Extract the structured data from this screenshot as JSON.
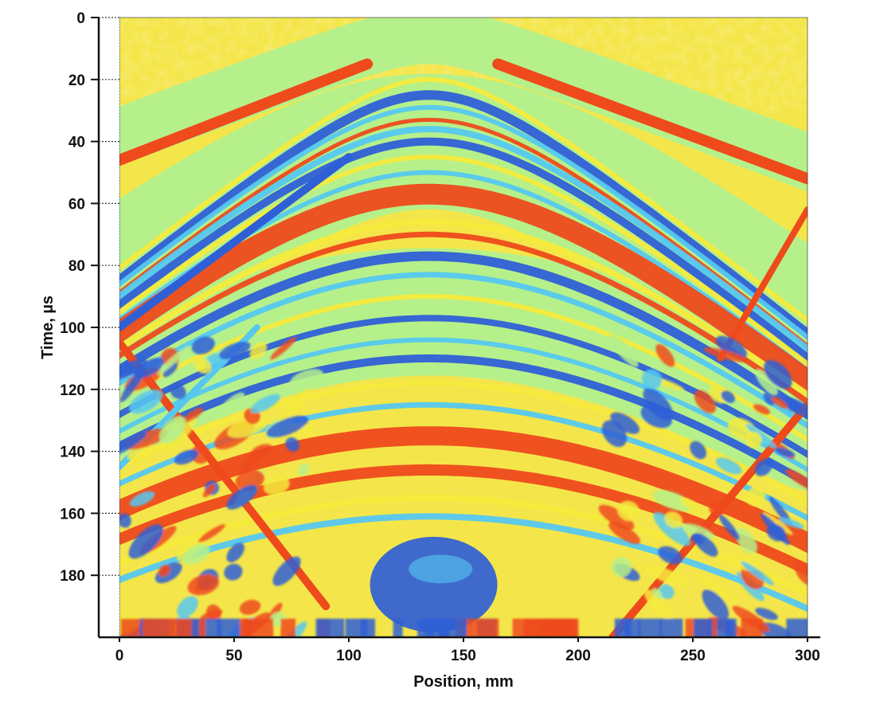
{
  "chart_data": {
    "type": "heatmap",
    "title": "",
    "xlabel": "Position, mm",
    "ylabel": "Time, µs",
    "xlim": [
      0,
      300
    ],
    "ylim": [
      0,
      200
    ],
    "y_inverted": true,
    "x_ticks": [
      0,
      50,
      100,
      150,
      200,
      250,
      300
    ],
    "x_tick_labels": [
      "0",
      "50",
      "100",
      "150",
      "200",
      "250",
      "300"
    ],
    "y_ticks": [
      0,
      20,
      40,
      60,
      80,
      100,
      120,
      140,
      160,
      180
    ],
    "y_tick_labels": [
      "0",
      "20",
      "40",
      "60",
      "80",
      "100",
      "120",
      "140",
      "160",
      "180"
    ],
    "grid": false,
    "legend": "none",
    "colormap": [
      "#2f5fd6",
      "#56c8f0",
      "#b6f08a",
      "#f5ea3c",
      "#ee4a1c"
    ],
    "background_band_color": "#b6f08a",
    "features": {
      "direct_wave_apex": {
        "x": 135,
        "t": 0
      },
      "wavefront_apexes_us": [
        25,
        35,
        57,
        77,
        110,
        135,
        168
      ],
      "dominant_red_arrivals_us": [
        57,
        135
      ],
      "dominant_blue_arrivals_us": [
        25,
        77,
        168
      ]
    }
  }
}
